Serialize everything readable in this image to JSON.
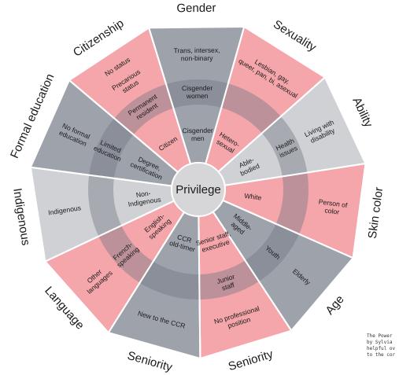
{
  "center": "Privilege",
  "colors": {
    "gray": "#9da2ab",
    "pink": "#f4a6ab",
    "ring": "#6f7480",
    "hub": "#d6d6d8",
    "lightgray": "#cfd1d5"
  },
  "segments": [
    {
      "category": "Gender",
      "color": "gray",
      "outer": "Trans, intersex,\nnon-binary",
      "middle": "Cisgender\nwomen",
      "inner": "Cisgender\nmen"
    },
    {
      "category": "Sexuality",
      "color": "pink",
      "outer": "Lesbian, gay,\nqueer, pan, bi, asexual",
      "middle": "",
      "inner": "Hetero-\nsexual"
    },
    {
      "category": "Ability",
      "color": "lightgray",
      "outer": "Living with\ndisability",
      "middle": "Health\nissues",
      "inner": "Able-\nbodied"
    },
    {
      "category": "Skin color",
      "color": "pink",
      "outer": "Person of\ncolor",
      "middle": "",
      "inner": "White"
    },
    {
      "category": "Age",
      "color": "gray",
      "outer": "Elderly",
      "middle": "Youth",
      "inner": "Middle-\naged"
    },
    {
      "category": "Seniority",
      "color": "pink",
      "outer": "No professional\nposition",
      "middle": "Junior\nstaff",
      "inner": "Senior staff,\nexecutive"
    },
    {
      "category": "Seniority",
      "color": "gray",
      "outer": "New to the CCR",
      "middle": "",
      "inner": "CCR\nold-timer"
    },
    {
      "category": "Language",
      "color": "pink",
      "outer": "Other\nlanguages",
      "middle": "French-\nspeaking",
      "inner": "English-\nspeaking"
    },
    {
      "category": "Indigenous",
      "color": "lightgray",
      "outer": "Indigenous",
      "middle": "",
      "inner": "Non-\nIndigenous"
    },
    {
      "category": "Formal education",
      "color": "gray",
      "outer": "No formal\neducation",
      "middle": "Limited\neducation",
      "inner": "Degree,\ncertification"
    },
    {
      "category": "Citizenship",
      "color": "pink",
      "outer": "No status\n\nPrecarious\nstatus",
      "middle": "Permanent\nresident",
      "inner": "Citizen"
    }
  ],
  "caption": "The Power\nby Sylvia\nhelpful ov\nto the cor"
}
